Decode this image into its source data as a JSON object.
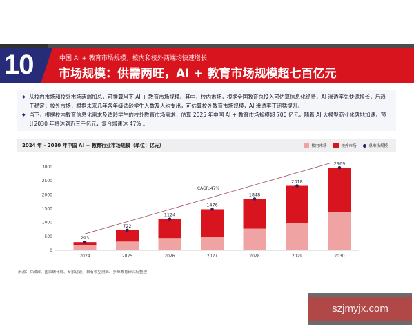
{
  "header": {
    "page_number": "10",
    "subtitle": "中国 AI + 教育市场规模，校内和校外两端均快速增长",
    "title": "市场规模：供需两旺，AI + 教育市场规模超七百亿元"
  },
  "intro": {
    "bullets": [
      "从校内市场和校外市场两端加总，可推算当下 AI + 教育市场规模。其中，校内市场，根据全国教育总投入可估算信息化经费，AI 渗透率先快速增长，后趋于稳定；校外市场，根据未来几年各年级适龄学生人数及人均支出，可估算校外教育市场规模，AI 渗透率正迅猛提升。",
      "当下，根据校内教育信息化需求及适龄学生的校外教育市场需求，估算 2025 年中国 AI + 教育市场规模超 700 亿元，随着 AI 大模型商业化落地加速，预计2030 年将达到近三千亿元，复合增速达 47% 。"
    ]
  },
  "chart_header": {
    "title": "2024 年 - 2030 年中国 AI + 教育行业市场规模（单位：亿元）",
    "legend": [
      "校内市场",
      "校外市场",
      "总市场规模"
    ]
  },
  "colors": {
    "school_in": "#f0a3a3",
    "school_out": "#d8141f",
    "total_dot": "#2b2060",
    "trend_line": "#9b4b5a",
    "header_red": "#d8141f",
    "header_navy": "#262c78"
  },
  "chart_data": {
    "type": "bar",
    "stacked": true,
    "title": "2024 年 - 2030 年中国 AI + 教育行业市场规模（单位：亿元）",
    "categories": [
      "2024",
      "2025",
      "2026",
      "2027",
      "2028",
      "2029",
      "2030"
    ],
    "series": [
      {
        "name": "校内市场",
        "values": [
          180,
          315,
          440,
          490,
          780,
          990,
          1370
        ]
      },
      {
        "name": "校外市场",
        "values": [
          113,
          407,
          684,
          986,
          1068,
          1328,
          1599
        ]
      },
      {
        "name": "总市场规模",
        "values": [
          293,
          722,
          1124,
          1476,
          1848,
          2318,
          2969
        ]
      }
    ],
    "data_labels": [
      "293",
      "722",
      "1124",
      "1476",
      "1848",
      "2318",
      "2969"
    ],
    "annotation": "CAGR:47%",
    "yticks": [
      0,
      500,
      1000,
      1500,
      2000,
      2500,
      3000
    ],
    "ylim": [
      0,
      3000
    ],
    "xlabel": "",
    "ylabel": "",
    "grid": false,
    "legend_position": "top-right"
  },
  "footer": {
    "source": "来源：财政部、国家统计局、专家访谈、自有模型测算、多鲸教育研究院整理"
  },
  "watermark": {
    "text": "szjmyjx.com"
  }
}
